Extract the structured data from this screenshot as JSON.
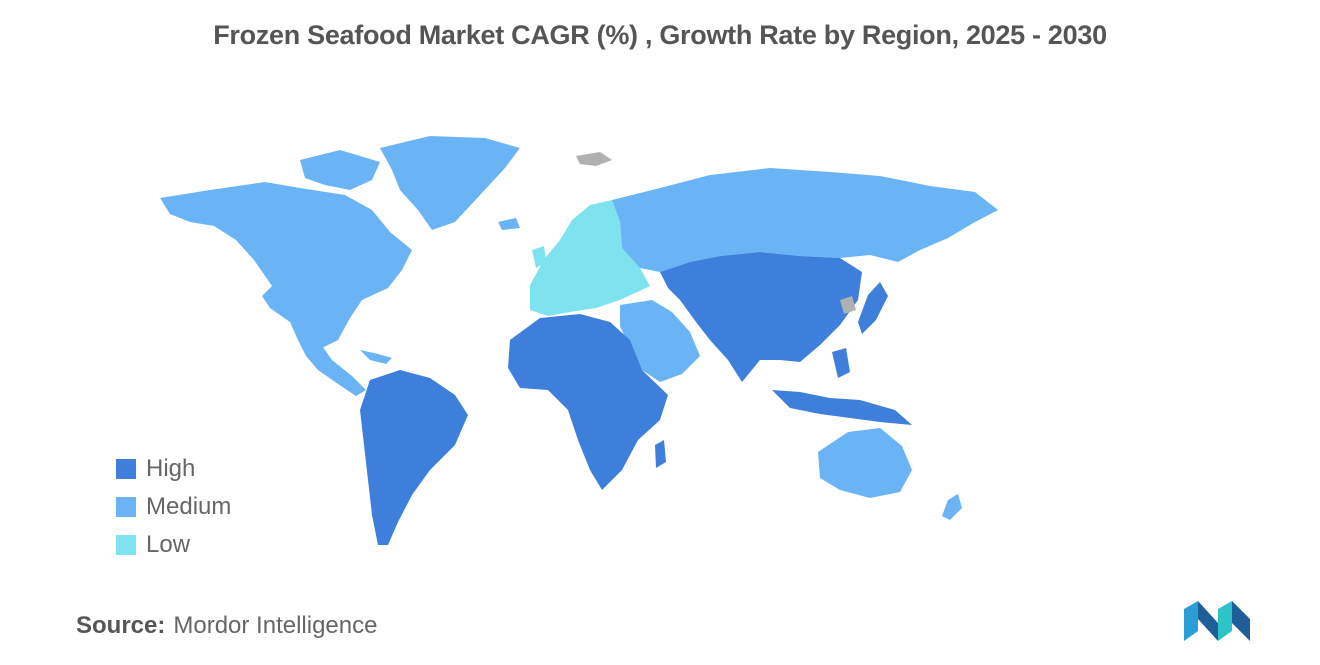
{
  "title": "Frozen Seafood Market CAGR (%) , Growth Rate by Region, 2025 - 2030",
  "colors": {
    "high": "#3d7fdb",
    "medium": "#6ab4f5",
    "low": "#7ee3ef",
    "no_data": "#b0b0b0"
  },
  "legend": [
    {
      "label": "High",
      "color": "#3d7fdb"
    },
    {
      "label": "Medium",
      "color": "#6ab4f5"
    },
    {
      "label": "Low",
      "color": "#7ee3ef"
    }
  ],
  "regions": [
    {
      "name": "North America",
      "level": "Medium"
    },
    {
      "name": "Greenland",
      "level": "Medium"
    },
    {
      "name": "South America",
      "level": "High"
    },
    {
      "name": "Europe",
      "level": "Low"
    },
    {
      "name": "Russia",
      "level": "Medium"
    },
    {
      "name": "Middle East",
      "level": "Medium"
    },
    {
      "name": "Africa",
      "level": "High"
    },
    {
      "name": "Asia-Pacific",
      "level": "High"
    },
    {
      "name": "Australia & New Zealand",
      "level": "Medium"
    }
  ],
  "source": {
    "label": "Source:",
    "value": "Mordor Intelligence"
  },
  "logo_icon": "mordor-intelligence-logo-icon"
}
